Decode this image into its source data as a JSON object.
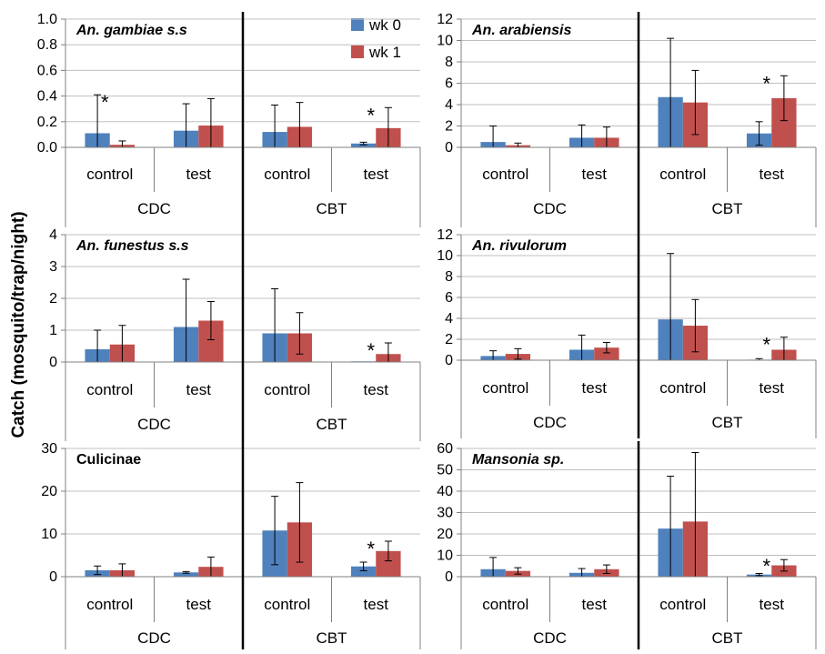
{
  "ylabel": "Catch (mosquito/trap/night)",
  "legend": [
    {
      "label": "wk 0",
      "color": "#4f81bd"
    },
    {
      "label": "wk 1",
      "color": "#c0504d"
    }
  ],
  "groups": [
    "CDC",
    "CBT"
  ],
  "categories": [
    "control",
    "test"
  ],
  "chart_data": [
    {
      "type": "bar",
      "title": "An. gambiae s.s",
      "title_italic": true,
      "ylim": [
        0,
        1.0
      ],
      "yticks": [
        "0.0",
        "0.2",
        "0.4",
        "0.6",
        "0.8",
        "1.0"
      ],
      "series": [
        {
          "name": "wk 0",
          "values": [
            0.11,
            0.13,
            0.12,
            0.03
          ],
          "err": [
            0.3,
            0.21,
            0.21,
            0.01
          ]
        },
        {
          "name": "wk 1",
          "values": [
            0.02,
            0.17,
            0.16,
            0.15
          ],
          "err": [
            0.03,
            0.21,
            0.19,
            0.16
          ]
        }
      ],
      "significant": [
        0,
        3
      ]
    },
    {
      "type": "bar",
      "title": "An. arabiensis",
      "title_italic": true,
      "ylim": [
        0,
        12
      ],
      "yticks": [
        "0",
        "2",
        "4",
        "6",
        "8",
        "10",
        "12"
      ],
      "series": [
        {
          "name": "wk 0",
          "values": [
            0.5,
            0.9,
            4.7,
            1.3
          ],
          "err": [
            1.5,
            1.2,
            5.5,
            1.1
          ]
        },
        {
          "name": "wk 1",
          "values": [
            0.2,
            0.9,
            4.2,
            4.6
          ],
          "err": [
            0.2,
            1.0,
            3.0,
            2.1
          ]
        }
      ],
      "significant": [
        3
      ]
    },
    {
      "type": "bar",
      "title": "An. funestus s.s",
      "title_italic": true,
      "ylim": [
        0,
        4
      ],
      "yticks": [
        "0",
        "1",
        "2",
        "3",
        "4"
      ],
      "series": [
        {
          "name": "wk 0",
          "values": [
            0.4,
            1.1,
            0.9,
            0.02
          ],
          "err": [
            0.6,
            1.5,
            1.4,
            0.0
          ]
        },
        {
          "name": "wk 1",
          "values": [
            0.55,
            1.3,
            0.9,
            0.25
          ],
          "err": [
            0.6,
            0.6,
            0.65,
            0.35
          ]
        }
      ],
      "significant": [
        3
      ]
    },
    {
      "type": "bar",
      "title": "An. rivulorum",
      "title_italic": true,
      "ylim": [
        0,
        12
      ],
      "yticks": [
        "0",
        "2",
        "4",
        "6",
        "8",
        "10",
        "12"
      ],
      "series": [
        {
          "name": "wk 0",
          "values": [
            0.4,
            1.0,
            3.9,
            0.05
          ],
          "err": [
            0.5,
            1.4,
            6.3,
            0.1
          ]
        },
        {
          "name": "wk 1",
          "values": [
            0.6,
            1.2,
            3.3,
            1.0
          ],
          "err": [
            0.5,
            0.5,
            2.5,
            1.2
          ]
        }
      ],
      "significant": [
        3
      ]
    },
    {
      "type": "bar",
      "title": "Culicinae",
      "title_italic": false,
      "ylim": [
        0,
        30
      ],
      "yticks": [
        "0",
        "10",
        "20",
        "30"
      ],
      "series": [
        {
          "name": "wk 0",
          "values": [
            1.5,
            1.0,
            10.8,
            2.4
          ],
          "err": [
            1.0,
            0.2,
            8.0,
            1.0
          ]
        },
        {
          "name": "wk 1",
          "values": [
            1.5,
            2.3,
            12.7,
            6.0
          ],
          "err": [
            1.5,
            2.3,
            9.3,
            2.3
          ]
        }
      ],
      "significant": [
        3
      ]
    },
    {
      "type": "bar",
      "title": "Mansonia sp.",
      "title_italic": true,
      "ylim": [
        0,
        60
      ],
      "yticks": [
        "0",
        "10",
        "20",
        "30",
        "40",
        "50",
        "60"
      ],
      "series": [
        {
          "name": "wk 0",
          "values": [
            3.5,
            1.8,
            22.5,
            1.0
          ],
          "err": [
            5.5,
            2.0,
            24.5,
            0.5
          ]
        },
        {
          "name": "wk 1",
          "values": [
            2.7,
            3.5,
            25.8,
            5.3
          ],
          "err": [
            1.5,
            2.0,
            32.3,
            2.7
          ]
        }
      ],
      "significant": [
        3
      ]
    }
  ]
}
